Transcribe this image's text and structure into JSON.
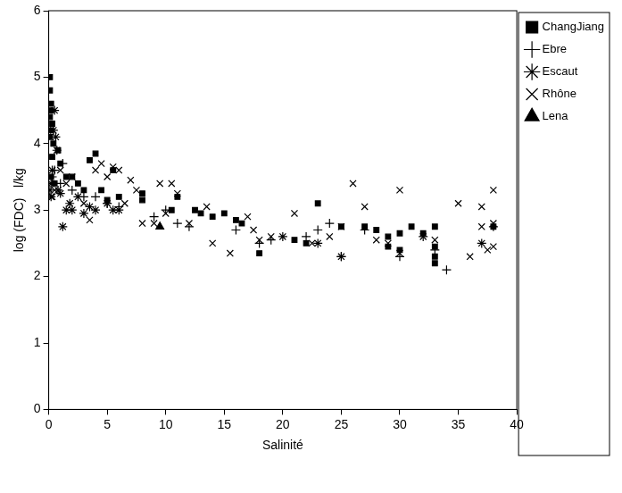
{
  "chart_data": {
    "type": "scatter",
    "x_label": "Salinité",
    "y_label": "log (FDC)   l/kg",
    "xlim": [
      0,
      40
    ],
    "xticks": [
      0,
      5,
      10,
      15,
      20,
      25,
      30,
      35,
      40
    ],
    "ylim": [
      0,
      6
    ],
    "yticks": [
      0,
      1,
      2,
      3,
      4,
      5,
      6
    ],
    "grid": false,
    "legend": "right",
    "series": [
      {
        "name": "ChangJiang",
        "color": "#000000",
        "marker": "square",
        "x": [
          0.1,
          0.1,
          0.2,
          0.2,
          0.1,
          0.3,
          0.2,
          0.1,
          0.4,
          0.3,
          0.2,
          0.5,
          0.8,
          1.0,
          1.5,
          2.0,
          2.5,
          3.0,
          3.5,
          4.0,
          4.5,
          5.0,
          5.5,
          6.0,
          8.0,
          8.0,
          10.5,
          11.0,
          12.5,
          13.0,
          14.0,
          15.0,
          16.0,
          16.5,
          18.0,
          21.0,
          22.0,
          23.0,
          25.0,
          27.0,
          28.0,
          29.0,
          29.0,
          30.0,
          30.0,
          31.0,
          32.0,
          33.0,
          33.0,
          33.0,
          33.0,
          38.0
        ],
        "values": [
          5.0,
          4.8,
          4.6,
          4.5,
          4.4,
          4.3,
          4.2,
          4.1,
          4.0,
          3.8,
          3.5,
          3.4,
          3.9,
          3.7,
          3.5,
          3.5,
          3.4,
          3.3,
          3.75,
          3.85,
          3.3,
          3.15,
          3.6,
          3.2,
          3.25,
          3.15,
          3.0,
          3.2,
          3.0,
          2.95,
          2.9,
          2.95,
          2.85,
          2.8,
          2.35,
          2.55,
          2.5,
          3.1,
          2.75,
          2.75,
          2.7,
          2.6,
          2.45,
          2.4,
          2.65,
          2.75,
          2.65,
          2.75,
          2.45,
          2.2,
          2.3,
          2.75
        ]
      },
      {
        "name": "Ebre",
        "color": "#000000",
        "marker": "plus",
        "x": [
          0.3,
          0.5,
          1.0,
          1.2,
          2.0,
          3.0,
          4.0,
          5.0,
          6.0,
          9.0,
          10.0,
          11.0,
          12.0,
          16.0,
          18.0,
          19.0,
          22.0,
          23.0,
          24.0,
          25.0,
          27.0,
          30.0,
          32.0,
          33.0,
          34.0,
          38.0
        ],
        "values": [
          3.5,
          3.6,
          3.4,
          3.7,
          3.3,
          3.2,
          3.2,
          3.1,
          3.05,
          2.9,
          3.0,
          2.8,
          2.75,
          2.7,
          2.5,
          2.55,
          2.6,
          2.7,
          2.8,
          2.3,
          2.7,
          2.3,
          2.6,
          2.4,
          2.1,
          2.75
        ]
      },
      {
        "name": "Escaut",
        "color": "#000000",
        "marker": "star",
        "x": [
          0.1,
          0.2,
          0.3,
          0.4,
          0.5,
          0.6,
          0.7,
          0.2,
          0.8,
          1.0,
          1.2,
          1.5,
          1.8,
          2.0,
          2.5,
          3.0,
          3.5,
          4.0,
          5.0,
          5.5,
          6.0,
          20.0,
          23.0,
          25.0,
          37.0
        ],
        "values": [
          3.3,
          3.2,
          3.6,
          4.2,
          4.5,
          4.1,
          3.9,
          3.4,
          3.3,
          3.25,
          2.75,
          3.0,
          3.1,
          3.0,
          3.2,
          2.95,
          3.05,
          3.0,
          3.1,
          3.0,
          3.0,
          2.6,
          2.5,
          2.3,
          2.5
        ]
      },
      {
        "name": "Rhône",
        "color": "#000000",
        "marker": "x",
        "x": [
          0.3,
          0.5,
          1.0,
          1.5,
          2.0,
          3.0,
          3.5,
          4.0,
          4.5,
          5.0,
          5.5,
          6.0,
          6.5,
          7.0,
          7.5,
          8.0,
          9.0,
          9.5,
          10.0,
          10.5,
          11.0,
          12.0,
          13.5,
          14.0,
          15.5,
          17.0,
          17.5,
          18.0,
          19.0,
          21.0,
          22.5,
          24.0,
          25.0,
          26.0,
          27.0,
          28.0,
          29.0,
          30.0,
          30.0,
          32.0,
          33.0,
          35.0,
          36.0,
          37.0,
          37.0,
          38.0,
          38.0,
          38.0,
          37.5
        ],
        "values": [
          3.2,
          3.3,
          3.6,
          3.4,
          3.5,
          3.1,
          2.85,
          3.6,
          3.7,
          3.5,
          3.65,
          3.6,
          3.1,
          3.45,
          3.3,
          2.8,
          2.8,
          3.4,
          2.95,
          3.4,
          3.25,
          2.8,
          3.05,
          2.5,
          2.35,
          2.9,
          2.7,
          2.55,
          2.6,
          2.95,
          2.5,
          2.6,
          2.75,
          3.4,
          3.05,
          2.55,
          2.5,
          3.3,
          2.35,
          2.6,
          2.55,
          3.1,
          2.3,
          2.75,
          3.05,
          3.3,
          2.8,
          2.45,
          2.4
        ]
      },
      {
        "name": "Lena",
        "color": "#000000",
        "marker": "triangle",
        "x": [
          9.5
        ],
        "values": [
          2.75
        ]
      }
    ]
  }
}
